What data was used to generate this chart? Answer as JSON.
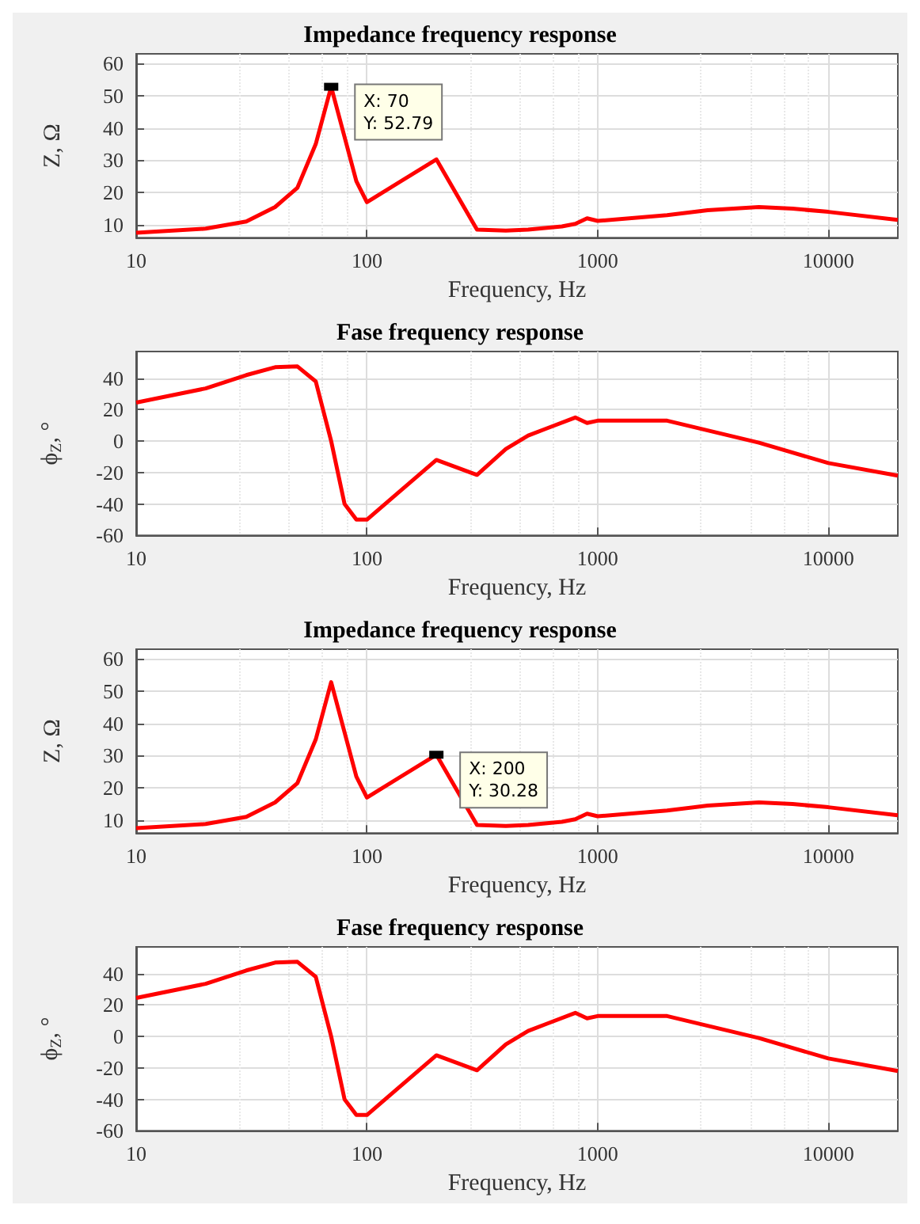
{
  "chart_data": [
    {
      "type": "line",
      "title": "Impedance frequency response",
      "xlabel": "Frequency, Hz",
      "ylabel": "Z, Ω",
      "log": "x",
      "grid": true,
      "xlim": [
        10,
        20000
      ],
      "xticks": [
        10,
        100,
        1000,
        10000
      ],
      "ylim": [
        6,
        63
      ],
      "yticks": [
        10,
        20,
        30,
        40,
        50,
        60
      ],
      "x": [
        10,
        20,
        30,
        40,
        50,
        60,
        70,
        90,
        100,
        200,
        300,
        400,
        500,
        700,
        800,
        900,
        1000,
        2000,
        3000,
        5000,
        7000,
        10000,
        20000
      ],
      "series": [
        {
          "color": "#ff0000",
          "values": [
            7.5,
            8.8,
            11,
            15.5,
            21.5,
            35,
            52.79,
            23.5,
            17,
            30.28,
            8.5,
            8.2,
            8.5,
            9.5,
            10.3,
            12,
            11.2,
            13,
            14.5,
            15.5,
            15,
            14,
            11.5
          ]
        }
      ],
      "annotations": [
        {
          "text": "X: 70\nY: 52.79",
          "x": 70,
          "y": 52.79
        }
      ]
    },
    {
      "type": "line",
      "title": "Fase frequency response",
      "xlabel": "Frequency, Hz",
      "ylabel": "ϕ$_{Z}$, °",
      "log": "x",
      "grid": true,
      "xlim": [
        10,
        20000
      ],
      "xticks": [
        10,
        100,
        1000,
        10000
      ],
      "ylim": [
        -60,
        57
      ],
      "yticks": [
        -60,
        -40,
        -20,
        0,
        20,
        40
      ],
      "x": [
        10,
        20,
        30,
        40,
        50,
        60,
        70,
        80,
        90,
        100,
        200,
        300,
        400,
        500,
        600,
        800,
        900,
        1000,
        2000,
        5000,
        10000,
        20000
      ],
      "series": [
        {
          "color": "#ff0000",
          "values": [
            24.5,
            33.5,
            42,
            47,
            47.5,
            38,
            0,
            -40,
            -50,
            -50,
            -12,
            -21.5,
            -5,
            3.5,
            8,
            15,
            11.5,
            13,
            13,
            -1,
            -14,
            -22
          ]
        }
      ]
    },
    {
      "type": "line",
      "title": "Impedance frequency response",
      "xlabel": "Frequency, Hz",
      "ylabel": "Z, Ω",
      "log": "x",
      "grid": true,
      "xlim": [
        10,
        20000
      ],
      "xticks": [
        10,
        100,
        1000,
        10000
      ],
      "ylim": [
        6,
        63
      ],
      "yticks": [
        10,
        20,
        30,
        40,
        50,
        60
      ],
      "x": [
        10,
        20,
        30,
        40,
        50,
        60,
        70,
        90,
        100,
        200,
        300,
        400,
        500,
        700,
        800,
        900,
        1000,
        2000,
        3000,
        5000,
        7000,
        10000,
        20000
      ],
      "series": [
        {
          "color": "#ff0000",
          "values": [
            7.5,
            8.8,
            11,
            15.5,
            21.5,
            35,
            52.79,
            23.5,
            17,
            30.28,
            8.5,
            8.2,
            8.5,
            9.5,
            10.3,
            12,
            11.2,
            13,
            14.5,
            15.5,
            15,
            14,
            11.5
          ]
        }
      ],
      "annotations": [
        {
          "text": "X: 200\nY: 30.28",
          "x": 200,
          "y": 30.28
        }
      ]
    },
    {
      "type": "line",
      "title": "Fase frequency response",
      "xlabel": "Frequency, Hz",
      "ylabel": "ϕ$_{Z}$, °",
      "log": "x",
      "grid": true,
      "xlim": [
        10,
        20000
      ],
      "xticks": [
        10,
        100,
        1000,
        10000
      ],
      "ylim": [
        -60,
        57
      ],
      "yticks": [
        -60,
        -40,
        -20,
        0,
        20,
        40
      ],
      "x": [
        10,
        20,
        30,
        40,
        50,
        60,
        70,
        80,
        90,
        100,
        200,
        300,
        400,
        500,
        600,
        800,
        900,
        1000,
        2000,
        5000,
        10000,
        20000
      ],
      "series": [
        {
          "color": "#ff0000",
          "values": [
            24.5,
            33.5,
            42,
            47,
            47.5,
            38,
            0,
            -40,
            -50,
            -50,
            -12,
            -21.5,
            -5,
            3.5,
            8,
            15,
            11.5,
            13,
            13,
            -1,
            -14,
            -22
          ]
        }
      ]
    }
  ]
}
